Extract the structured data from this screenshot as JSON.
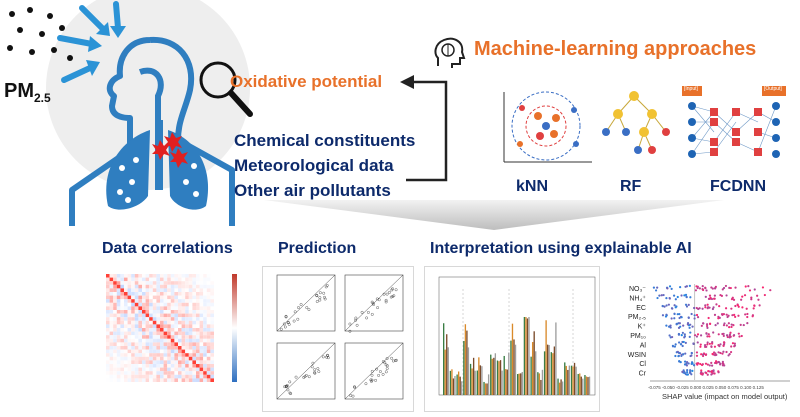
{
  "header": {
    "pm_label": "PM",
    "pm_sub": "2.5",
    "oxidative": "Oxidative potential",
    "ml_title": "Machine-learning approaches",
    "inputs": [
      "Chemical constituents",
      "Meteorological data",
      "Other air pollutants"
    ],
    "models": [
      "kNN",
      "RF",
      "FCDNN"
    ]
  },
  "fcdnn": {
    "input_label": "[Input]",
    "output_label": "[Output]"
  },
  "sections": {
    "correlations": "Data correlations",
    "prediction": "Prediction",
    "interpretation": "Interpretation using explainable AI"
  },
  "shap": {
    "features": [
      "NO₃⁻",
      "NH₄⁺",
      "EC",
      "PM₂.₅",
      "K⁺",
      "PM₁₀",
      "Al",
      "WSIN",
      "Cl",
      "Cr"
    ],
    "xlabel": "SHAP value (impact on model output)",
    "ticks": "-0.075 -0.050 -0.025 0.000 0.025 0.050 0.075 0.100 0.125"
  },
  "colors": {
    "accent_orange": "#e8712a",
    "navy": "#0d2a6b",
    "arrow_blue": "#2b93d6",
    "lung_blue": "#2f7ec0",
    "particle_red": "#e02020"
  }
}
